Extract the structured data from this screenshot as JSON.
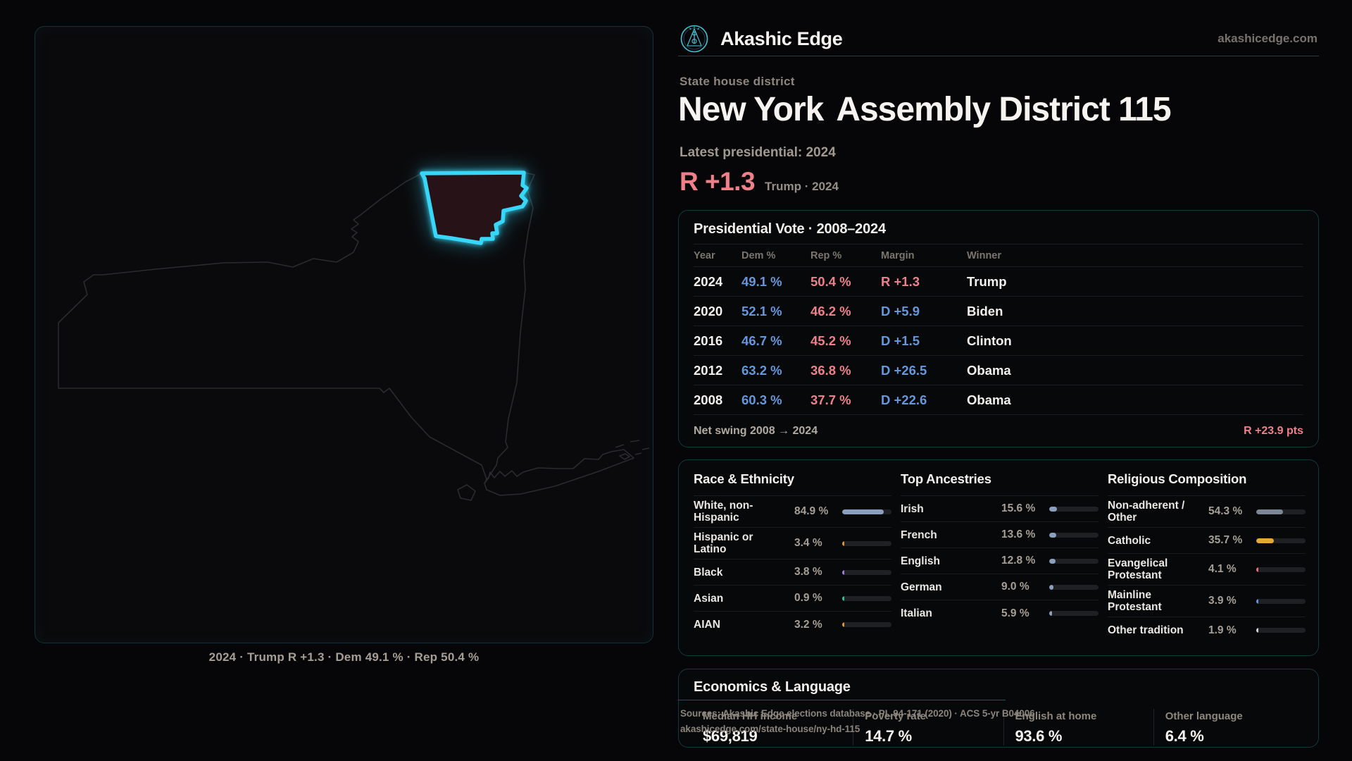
{
  "brand": {
    "name": "Akashic Edge",
    "domain": "akashicedge.com",
    "logo_icon": "akashic-edge-emblem"
  },
  "colors": {
    "accent_cyan": "#38d7f8",
    "dem_blue": "#6497dc",
    "rep_red": "#ee8089",
    "gold": "#e3ab2e",
    "steel": "#8b9fbe",
    "brand_teal": "#3fc3d4"
  },
  "header": {
    "kicker": "State house district",
    "title_state": "New York",
    "title_rest": "Assembly District 115",
    "subtitle": "Latest presidential: 2024",
    "margin_value": "R +1.3",
    "margin_party": "R",
    "margin_context": "Trump · 2024"
  },
  "map": {
    "caption": "2024 · Trump R +1.3 · Dem 49.1 % · Rep 50.4 %"
  },
  "pres_table": {
    "title": "Presidential Vote · 2008–2024",
    "columns": [
      "Year",
      "Dem %",
      "Rep %",
      "Margin",
      "Winner"
    ],
    "rows": [
      {
        "year": "2024",
        "dem": "49.1 %",
        "rep": "50.4 %",
        "margin": "R +1.3",
        "margin_party": "R",
        "winner": "Trump"
      },
      {
        "year": "2020",
        "dem": "52.1 %",
        "rep": "46.2 %",
        "margin": "D +5.9",
        "margin_party": "D",
        "winner": "Biden"
      },
      {
        "year": "2016",
        "dem": "46.7 %",
        "rep": "45.2 %",
        "margin": "D +1.5",
        "margin_party": "D",
        "winner": "Clinton"
      },
      {
        "year": "2012",
        "dem": "63.2 %",
        "rep": "36.8 %",
        "margin": "D +26.5",
        "margin_party": "D",
        "winner": "Obama"
      },
      {
        "year": "2008",
        "dem": "60.3 %",
        "rep": "37.7 %",
        "margin": "D +22.6",
        "margin_party": "D",
        "winner": "Obama"
      }
    ],
    "footer_label": "Net swing 2008 → 2024",
    "footer_value": "R +23.9 pts"
  },
  "race": {
    "title": "Race & Ethnicity",
    "rows": [
      {
        "label": "White, non-Hispanic",
        "value": "84.9 %",
        "pct": 84.9,
        "color": "#8b9fbe"
      },
      {
        "label": "Hispanic or Latino",
        "value": "3.4 %",
        "pct": 3.4,
        "color": "#e5952f"
      },
      {
        "label": "Black",
        "value": "3.8 %",
        "pct": 3.8,
        "color": "#9d7ce6"
      },
      {
        "label": "Asian",
        "value": "0.9 %",
        "pct": 0.9,
        "color": "#2fc39c"
      },
      {
        "label": "AIAN",
        "value": "3.2 %",
        "pct": 3.2,
        "color": "#e5952f"
      }
    ]
  },
  "ancestries": {
    "title": "Top Ancestries",
    "rows": [
      {
        "label": "Irish",
        "value": "15.6 %",
        "pct": 15.6,
        "color": "#8b9fbe"
      },
      {
        "label": "French",
        "value": "13.6 %",
        "pct": 13.6,
        "color": "#8b9fbe"
      },
      {
        "label": "English",
        "value": "12.8 %",
        "pct": 12.8,
        "color": "#8b9fbe"
      },
      {
        "label": "German",
        "value": "9.0 %",
        "pct": 9.0,
        "color": "#8b9fbe"
      },
      {
        "label": "Italian",
        "value": "5.9 %",
        "pct": 5.9,
        "color": "#8b9fbe"
      }
    ]
  },
  "religion": {
    "title": "Religious Composition",
    "rows": [
      {
        "label": "Non-adherent / Other",
        "value": "54.3 %",
        "pct": 54.3,
        "color": "#7d8695"
      },
      {
        "label": "Catholic",
        "value": "35.7 %",
        "pct": 35.7,
        "color": "#e3ab2e"
      },
      {
        "label": "Evangelical Protestant",
        "value": "4.1 %",
        "pct": 4.1,
        "color": "#e87078"
      },
      {
        "label": "Mainline Protestant",
        "value": "3.9 %",
        "pct": 3.9,
        "color": "#5e94dc"
      },
      {
        "label": "Other tradition",
        "value": "1.9 %",
        "pct": 1.9,
        "color": "#d3d3d6"
      }
    ]
  },
  "economics": {
    "title": "Economics & Language",
    "stats": [
      {
        "label": "Median HH income",
        "value": "$69,819"
      },
      {
        "label": "Poverty rate",
        "value": "14.7 %"
      },
      {
        "label": "English at home",
        "value": "93.6 %"
      },
      {
        "label": "Other language",
        "value": "6.4 %"
      }
    ]
  },
  "source": {
    "line1": "Sources: Akashic Edge elections database · PL 94-171 (2020) · ACS 5-yr B04006",
    "line2": "akashicedge.com/state-house/ny-hd-115"
  }
}
